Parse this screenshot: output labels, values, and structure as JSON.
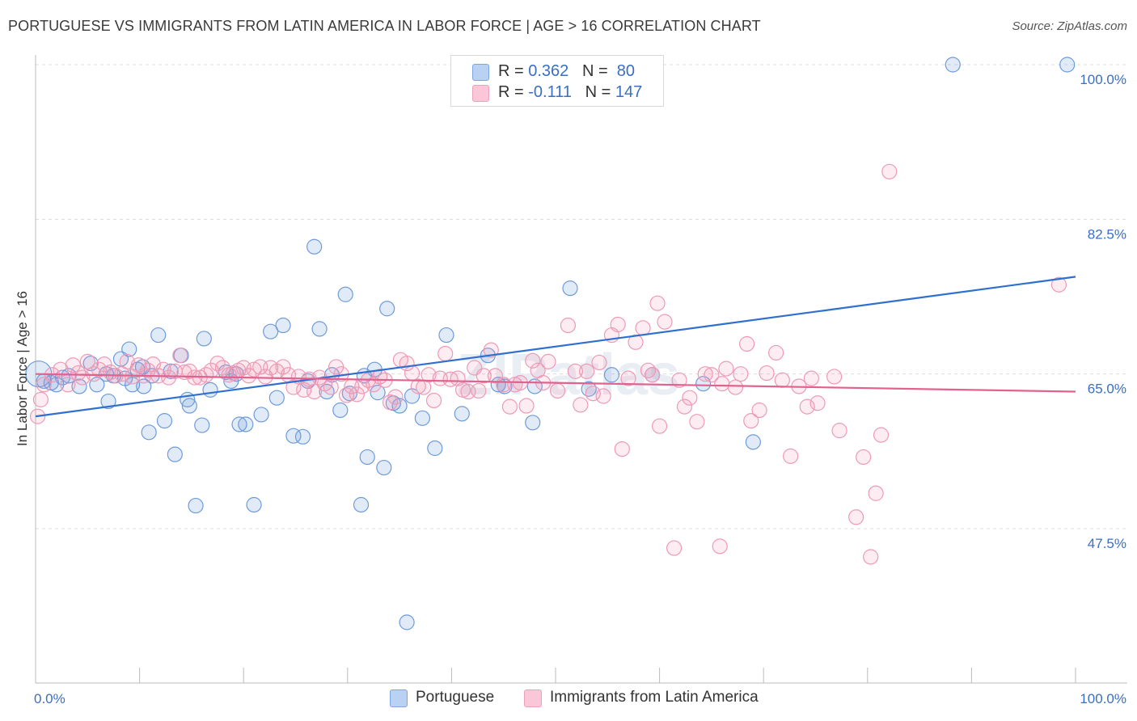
{
  "title": "PORTUGUESE VS IMMIGRANTS FROM LATIN AMERICA IN LABOR FORCE | AGE > 16 CORRELATION CHART",
  "source": "Source: ZipAtlas.com",
  "watermark": "ZIPatlas",
  "legend_top": {
    "rows": [
      {
        "r_label": "R =",
        "r_value": "0.362",
        "n_label": "N =",
        "n_value": "80"
      },
      {
        "r_label": "R =",
        "r_value": "-0.111",
        "n_label": "N =",
        "n_value": "147"
      }
    ]
  },
  "chart_data": {
    "type": "scatter",
    "title": "PORTUGUESE VS IMMIGRANTS FROM LATIN AMERICA IN LABOR FORCE | AGE > 16 CORRELATION CHART",
    "xlabel": "",
    "ylabel": "In Labor Force | Age > 16",
    "xlim": [
      0,
      100
    ],
    "ylim": [
      30,
      102
    ],
    "x_tick_labels": [
      "0.0%",
      "100.0%"
    ],
    "y_ticks": [
      47.5,
      65.0,
      82.5,
      100.0
    ],
    "y_tick_labels": [
      "47.5%",
      "65.0%",
      "82.5%",
      "100.0%"
    ],
    "grid": "horizontal dashed",
    "legend": "bottom-center",
    "colors": {
      "portuguese": "#5b8fd9",
      "latin": "#f08aab",
      "portuguese_line": "#2f6fcf",
      "latin_line": "#e2628f",
      "tick_label": "#3a6fc4"
    },
    "series": [
      {
        "name": "Portuguese",
        "r": 0.362,
        "n": 80,
        "trend": [
          [
            0,
            60.2
          ],
          [
            100,
            76.0
          ]
        ],
        "points": [
          [
            0.3,
            65.0
          ],
          [
            0.8,
            64.2
          ],
          [
            1.5,
            64.0
          ],
          [
            2.0,
            63.8
          ],
          [
            2.6,
            64.6
          ],
          [
            3.2,
            64.8
          ],
          [
            4.2,
            63.6
          ],
          [
            5.3,
            66.2
          ],
          [
            5.9,
            63.8
          ],
          [
            6.8,
            65.0
          ],
          [
            7.0,
            61.9
          ],
          [
            7.5,
            64.8
          ],
          [
            8.2,
            66.7
          ],
          [
            8.6,
            64.5
          ],
          [
            9.0,
            67.8
          ],
          [
            9.3,
            63.8
          ],
          [
            9.8,
            65.5
          ],
          [
            10.3,
            65.8
          ],
          [
            10.4,
            63.6
          ],
          [
            10.9,
            58.4
          ],
          [
            11.2,
            64.8
          ],
          [
            11.8,
            69.4
          ],
          [
            12.4,
            59.7
          ],
          [
            13.0,
            65.3
          ],
          [
            13.4,
            55.9
          ],
          [
            14.0,
            67.1
          ],
          [
            14.6,
            62.1
          ],
          [
            14.8,
            61.4
          ],
          [
            15.4,
            50.1
          ],
          [
            16.0,
            59.2
          ],
          [
            16.2,
            69.0
          ],
          [
            16.8,
            63.2
          ],
          [
            18.3,
            65.2
          ],
          [
            18.8,
            64.2
          ],
          [
            19.3,
            65.0
          ],
          [
            19.6,
            59.3
          ],
          [
            20.2,
            59.3
          ],
          [
            21.0,
            50.2
          ],
          [
            21.7,
            60.4
          ],
          [
            22.6,
            69.8
          ],
          [
            23.2,
            62.3
          ],
          [
            23.8,
            70.5
          ],
          [
            24.8,
            58.0
          ],
          [
            25.7,
            57.9
          ],
          [
            26.2,
            64.2
          ],
          [
            26.8,
            79.4
          ],
          [
            27.3,
            70.1
          ],
          [
            28.0,
            63.0
          ],
          [
            28.5,
            64.9
          ],
          [
            29.3,
            60.9
          ],
          [
            29.8,
            74.0
          ],
          [
            30.2,
            62.8
          ],
          [
            31.3,
            50.2
          ],
          [
            31.6,
            64.8
          ],
          [
            31.9,
            55.6
          ],
          [
            32.6,
            65.5
          ],
          [
            32.9,
            62.9
          ],
          [
            33.5,
            54.4
          ],
          [
            33.8,
            72.4
          ],
          [
            34.4,
            61.7
          ],
          [
            35.0,
            61.4
          ],
          [
            35.7,
            36.9
          ],
          [
            36.2,
            62.5
          ],
          [
            37.2,
            60.0
          ],
          [
            38.4,
            56.6
          ],
          [
            39.5,
            69.4
          ],
          [
            41.0,
            60.5
          ],
          [
            43.5,
            67.1
          ],
          [
            44.5,
            63.8
          ],
          [
            45.1,
            63.6
          ],
          [
            47.8,
            59.5
          ],
          [
            48.0,
            63.6
          ],
          [
            51.4,
            74.7
          ],
          [
            53.2,
            63.3
          ],
          [
            55.4,
            64.9
          ],
          [
            59.3,
            64.9
          ],
          [
            64.2,
            63.9
          ],
          [
            69.0,
            57.3
          ],
          [
            88.2,
            100.0
          ],
          [
            99.2,
            100.0
          ]
        ]
      },
      {
        "name": "Immigrants from Latin America",
        "r": -0.111,
        "n": 147,
        "trend": [
          [
            0,
            65.0
          ],
          [
            100,
            63.0
          ]
        ],
        "points": [
          [
            0.2,
            60.2
          ],
          [
            0.5,
            62.1
          ],
          [
            0.8,
            63.8
          ],
          [
            1.6,
            64.9
          ],
          [
            2.4,
            65.5
          ],
          [
            3.1,
            63.8
          ],
          [
            3.6,
            66.0
          ],
          [
            4.1,
            65.1
          ],
          [
            4.5,
            64.6
          ],
          [
            5.0,
            66.4
          ],
          [
            5.6,
            65.0
          ],
          [
            6.1,
            65.5
          ],
          [
            6.6,
            66.1
          ],
          [
            7.2,
            65.2
          ],
          [
            7.7,
            64.8
          ],
          [
            8.3,
            65.0
          ],
          [
            8.8,
            66.4
          ],
          [
            9.3,
            64.7
          ],
          [
            9.9,
            66.0
          ],
          [
            10.4,
            64.8
          ],
          [
            10.8,
            65.4
          ],
          [
            11.3,
            66.1
          ],
          [
            11.8,
            64.8
          ],
          [
            12.3,
            65.5
          ],
          [
            12.8,
            64.6
          ],
          [
            13.4,
            65.3
          ],
          [
            13.9,
            67.1
          ],
          [
            14.3,
            65.2
          ],
          [
            14.8,
            65.3
          ],
          [
            15.3,
            64.6
          ],
          [
            15.8,
            64.6
          ],
          [
            16.4,
            64.9
          ],
          [
            16.9,
            65.4
          ],
          [
            17.5,
            66.2
          ],
          [
            18.0,
            65.7
          ],
          [
            18.6,
            64.9
          ],
          [
            19.0,
            65.1
          ],
          [
            19.5,
            65.4
          ],
          [
            20.0,
            65.7
          ],
          [
            20.5,
            64.8
          ],
          [
            21.0,
            65.5
          ],
          [
            21.6,
            65.8
          ],
          [
            22.1,
            64.7
          ],
          [
            22.6,
            65.7
          ],
          [
            23.2,
            65.3
          ],
          [
            23.8,
            65.8
          ],
          [
            24.3,
            64.9
          ],
          [
            24.8,
            63.5
          ],
          [
            25.3,
            64.7
          ],
          [
            25.8,
            63.2
          ],
          [
            26.3,
            64.4
          ],
          [
            26.8,
            63.0
          ],
          [
            27.3,
            64.6
          ],
          [
            27.8,
            63.9
          ],
          [
            28.4,
            63.5
          ],
          [
            28.9,
            65.8
          ],
          [
            29.4,
            65.0
          ],
          [
            29.9,
            62.6
          ],
          [
            30.4,
            63.6
          ],
          [
            30.9,
            62.7
          ],
          [
            31.4,
            63.6
          ],
          [
            32.0,
            64.3
          ],
          [
            32.5,
            63.8
          ],
          [
            33.1,
            64.7
          ],
          [
            33.6,
            64.3
          ],
          [
            34.1,
            61.8
          ],
          [
            34.6,
            62.4
          ],
          [
            35.1,
            66.6
          ],
          [
            35.7,
            66.2
          ],
          [
            36.2,
            65.1
          ],
          [
            36.8,
            63.6
          ],
          [
            37.3,
            63.5
          ],
          [
            37.8,
            64.9
          ],
          [
            38.3,
            62.0
          ],
          [
            38.9,
            64.5
          ],
          [
            39.4,
            67.3
          ],
          [
            39.9,
            64.4
          ],
          [
            40.6,
            64.5
          ],
          [
            41.1,
            63.2
          ],
          [
            41.6,
            63.0
          ],
          [
            42.2,
            65.7
          ],
          [
            42.6,
            63.1
          ],
          [
            43.1,
            64.8
          ],
          [
            43.8,
            67.7
          ],
          [
            44.2,
            64.8
          ],
          [
            45.0,
            63.8
          ],
          [
            45.6,
            61.3
          ],
          [
            46.1,
            63.8
          ],
          [
            46.6,
            64.0
          ],
          [
            47.2,
            61.4
          ],
          [
            47.8,
            66.5
          ],
          [
            48.3,
            65.4
          ],
          [
            48.8,
            64.0
          ],
          [
            49.3,
            66.4
          ],
          [
            50.2,
            63.1
          ],
          [
            51.2,
            70.5
          ],
          [
            51.9,
            65.3
          ],
          [
            52.4,
            61.5
          ],
          [
            53.0,
            65.3
          ],
          [
            53.6,
            62.8
          ],
          [
            54.2,
            66.3
          ],
          [
            54.6,
            62.5
          ],
          [
            55.4,
            69.4
          ],
          [
            56.0,
            70.6
          ],
          [
            56.4,
            56.5
          ],
          [
            57.0,
            64.5
          ],
          [
            57.7,
            68.6
          ],
          [
            58.4,
            70.2
          ],
          [
            58.9,
            65.4
          ],
          [
            59.3,
            64.9
          ],
          [
            59.8,
            73.0
          ],
          [
            60.0,
            59.1
          ],
          [
            60.5,
            70.9
          ],
          [
            61.4,
            45.3
          ],
          [
            61.9,
            64.3
          ],
          [
            62.4,
            61.3
          ],
          [
            62.9,
            62.3
          ],
          [
            63.6,
            59.6
          ],
          [
            64.4,
            65.0
          ],
          [
            65.0,
            64.9
          ],
          [
            65.8,
            45.5
          ],
          [
            66.0,
            63.9
          ],
          [
            66.4,
            65.6
          ],
          [
            67.3,
            63.5
          ],
          [
            67.8,
            65.0
          ],
          [
            68.4,
            68.4
          ],
          [
            68.8,
            59.7
          ],
          [
            69.6,
            60.9
          ],
          [
            70.3,
            65.1
          ],
          [
            71.2,
            67.4
          ],
          [
            71.8,
            64.3
          ],
          [
            72.6,
            55.7
          ],
          [
            73.4,
            63.6
          ],
          [
            74.2,
            61.3
          ],
          [
            74.6,
            64.5
          ],
          [
            75.2,
            61.7
          ],
          [
            76.8,
            64.7
          ],
          [
            77.3,
            58.6
          ],
          [
            78.9,
            48.8
          ],
          [
            79.6,
            55.6
          ],
          [
            80.3,
            44.3
          ],
          [
            80.8,
            51.5
          ],
          [
            81.3,
            58.1
          ],
          [
            82.1,
            87.9
          ],
          [
            98.4,
            75.1
          ]
        ]
      }
    ]
  },
  "legend_bottom": {
    "items": [
      {
        "label": "Portuguese"
      },
      {
        "label": "Immigrants from Latin America"
      }
    ]
  }
}
